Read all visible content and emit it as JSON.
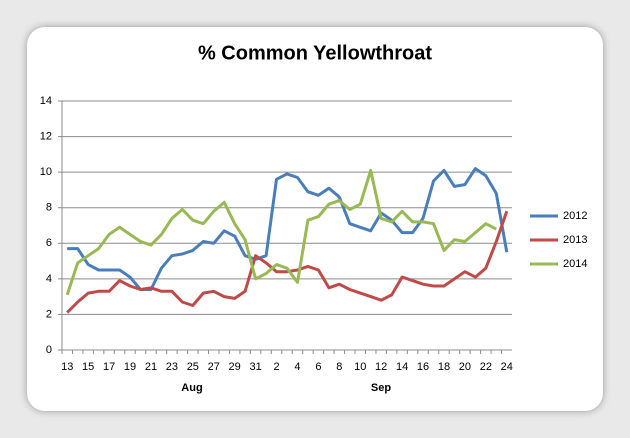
{
  "chart_data": {
    "type": "line",
    "title": "% Common Yellowthroat",
    "categories": [
      "13",
      null,
      "15",
      null,
      "17",
      null,
      "19",
      null,
      "21",
      null,
      "23",
      null,
      "25",
      null,
      "27",
      null,
      "29",
      null,
      "31",
      null,
      "2",
      null,
      "4",
      null,
      "6",
      null,
      "8",
      null,
      "10",
      null,
      "12",
      null,
      "14",
      null,
      "16",
      null,
      "18",
      null,
      "20",
      null,
      "22",
      null,
      "24"
    ],
    "category_groups": [
      "Aug",
      "Sep"
    ],
    "series": [
      {
        "name": "2012",
        "color": "#4a7ebb",
        "values": [
          5.7,
          5.7,
          4.8,
          4.5,
          4.5,
          4.5,
          4.1,
          3.4,
          3.4,
          4.6,
          5.3,
          5.4,
          5.6,
          6.1,
          6.0,
          6.7,
          6.4,
          5.3,
          5.1,
          5.3,
          9.6,
          9.9,
          9.7,
          8.9,
          8.7,
          9.1,
          8.6,
          7.1,
          6.9,
          6.7,
          7.7,
          7.3,
          6.6,
          6.6,
          7.4,
          9.5,
          10.1,
          9.2,
          9.3,
          10.2,
          9.8,
          8.8,
          5.5
        ]
      },
      {
        "name": "2013",
        "color": "#be4b48",
        "values": [
          2.1,
          2.7,
          3.2,
          3.3,
          3.3,
          3.9,
          3.6,
          3.4,
          3.5,
          3.3,
          3.3,
          2.7,
          2.5,
          3.2,
          3.3,
          3.0,
          2.9,
          3.3,
          5.3,
          4.9,
          4.4,
          4.4,
          4.5,
          4.7,
          4.5,
          3.5,
          3.7,
          3.4,
          3.2,
          3.0,
          2.8,
          3.1,
          4.1,
          3.9,
          3.7,
          3.6,
          3.6,
          4.0,
          4.4,
          4.1,
          4.6,
          6.1,
          7.8
        ]
      },
      {
        "name": "2014",
        "color": "#98b954",
        "values": [
          3.1,
          4.9,
          5.3,
          5.7,
          6.5,
          6.9,
          6.5,
          6.1,
          5.9,
          6.5,
          7.4,
          7.9,
          7.3,
          7.1,
          7.8,
          8.3,
          7.1,
          6.2,
          4.0,
          4.3,
          4.8,
          4.6,
          3.8,
          7.3,
          7.5,
          8.2,
          8.4,
          7.9,
          8.2,
          10.1,
          7.4,
          7.2,
          7.8,
          7.2,
          7.2,
          7.1,
          5.6,
          6.2,
          6.1,
          6.6,
          7.1,
          6.8,
          null
        ]
      }
    ],
    "ylim": [
      0,
      14
    ],
    "yticks": [
      0,
      2,
      4,
      6,
      8,
      10,
      12,
      14
    ],
    "grid": true,
    "legend": "right"
  }
}
